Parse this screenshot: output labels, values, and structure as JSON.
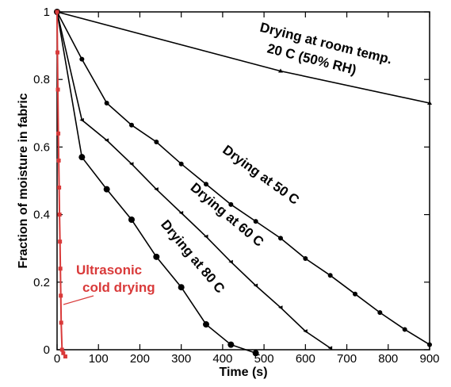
{
  "chart_data": {
    "type": "line",
    "title": "",
    "xlabel": "Time (s)",
    "ylabel": "Fraction of moisture in fabric",
    "xlim": [
      0,
      900
    ],
    "ylim": [
      0,
      1
    ],
    "xticks": [
      0,
      100,
      200,
      300,
      400,
      500,
      600,
      700,
      800,
      900
    ],
    "yticks": [
      0,
      0.2,
      0.4,
      0.6,
      0.8,
      1
    ],
    "grid": false,
    "legend": "none",
    "series": [
      {
        "key": "room",
        "color": "#000000",
        "marker": "triangle",
        "x": [
          0,
          540,
          900
        ],
        "y": [
          1.0,
          0.825,
          0.73
        ]
      },
      {
        "key": "c50",
        "color": "#000000",
        "marker": "circle",
        "x": [
          0,
          60,
          120,
          180,
          240,
          300,
          360,
          420,
          480,
          540,
          600,
          660,
          720,
          780,
          840,
          900
        ],
        "y": [
          1.0,
          0.86,
          0.73,
          0.665,
          0.615,
          0.55,
          0.49,
          0.43,
          0.38,
          0.33,
          0.27,
          0.22,
          0.165,
          0.11,
          0.06,
          0.015
        ]
      },
      {
        "key": "c60",
        "color": "#000000",
        "marker": "arrow",
        "x": [
          0,
          60,
          120,
          180,
          240,
          300,
          360,
          420,
          480,
          540,
          600,
          660
        ],
        "y": [
          1.0,
          0.68,
          0.62,
          0.55,
          0.475,
          0.405,
          0.335,
          0.26,
          0.19,
          0.125,
          0.055,
          0.005
        ]
      },
      {
        "key": "c80",
        "color": "#000000",
        "marker": "bigcircle",
        "x": [
          0,
          60,
          120,
          180,
          240,
          300,
          360,
          420,
          480
        ],
        "y": [
          1.0,
          0.57,
          0.475,
          0.385,
          0.275,
          0.185,
          0.075,
          0.015,
          -0.01
        ]
      },
      {
        "key": "ultra",
        "color": "#d93a3a",
        "marker": "square",
        "x": [
          0,
          1,
          2,
          3,
          4,
          5,
          6,
          7,
          8,
          9,
          10,
          12,
          15,
          20
        ],
        "y": [
          1.0,
          0.88,
          0.77,
          0.64,
          0.56,
          0.48,
          0.4,
          0.32,
          0.24,
          0.16,
          0.08,
          0.0,
          -0.01,
          -0.02
        ]
      }
    ],
    "annotations": [
      {
        "key": "room1",
        "text": "Drying at room temp."
      },
      {
        "key": "room2",
        "text": "20 C (50% RH)"
      },
      {
        "key": "c50",
        "text": "Drying at 50 C"
      },
      {
        "key": "c60",
        "text": "Drying at 60 C"
      },
      {
        "key": "c80",
        "text": "Drying at 80 C"
      },
      {
        "key": "ultra1",
        "text": "Ultrasonic"
      },
      {
        "key": "ultra2",
        "text": "cold drying"
      }
    ]
  }
}
